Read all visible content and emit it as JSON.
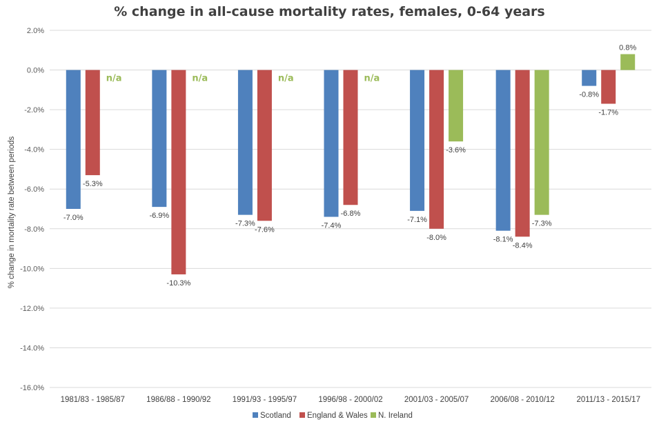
{
  "chart_data": {
    "type": "bar",
    "title": "% change in all-cause mortality rates, females, 0-64 years",
    "ylabel": "% change in mortality rate between periods",
    "xlabel": "",
    "ylim": [
      -16,
      2
    ],
    "ytick_step": 2,
    "ytick_labels": [
      "2.0%",
      "0.0%",
      "-2.0%",
      "-4.0%",
      "-6.0%",
      "-8.0%",
      "-10.0%",
      "-12.0%",
      "-14.0%",
      "-16.0%"
    ],
    "grid": true,
    "legend_position": "bottom",
    "categories": [
      "1981/83 - 1985/87",
      "1986/88 - 1990/92",
      "1991/93 - 1995/97",
      "1996/98 - 2000/02",
      "2001/03 - 2005/07",
      "2006/08 - 2010/12",
      "2011/13 - 2015/17"
    ],
    "series": [
      {
        "name": "Scotland",
        "color": "#4f81bd",
        "values": [
          -7.0,
          -6.9,
          -7.3,
          -7.4,
          -7.1,
          -8.1,
          -0.8
        ],
        "labels": [
          "-7.0%",
          "-6.9%",
          "-7.3%",
          "-7.4%",
          "-7.1%",
          "-8.1%",
          "-0.8%"
        ]
      },
      {
        "name": "England & Wales",
        "color": "#c0504d",
        "values": [
          -5.3,
          -10.3,
          -7.6,
          -6.8,
          -8.0,
          -8.4,
          -1.7
        ],
        "labels": [
          "-5.3%",
          "-10.3%",
          "-7.6%",
          "-6.8%",
          "-8.0%",
          "-8.4%",
          "-1.7%"
        ]
      },
      {
        "name": "N. Ireland",
        "color": "#9bbb59",
        "values": [
          null,
          null,
          null,
          null,
          -3.6,
          -7.3,
          0.8
        ],
        "labels": [
          "n/a",
          "n/a",
          "n/a",
          "n/a",
          "-3.6%",
          "-7.3%",
          "0.8%"
        ]
      }
    ]
  }
}
